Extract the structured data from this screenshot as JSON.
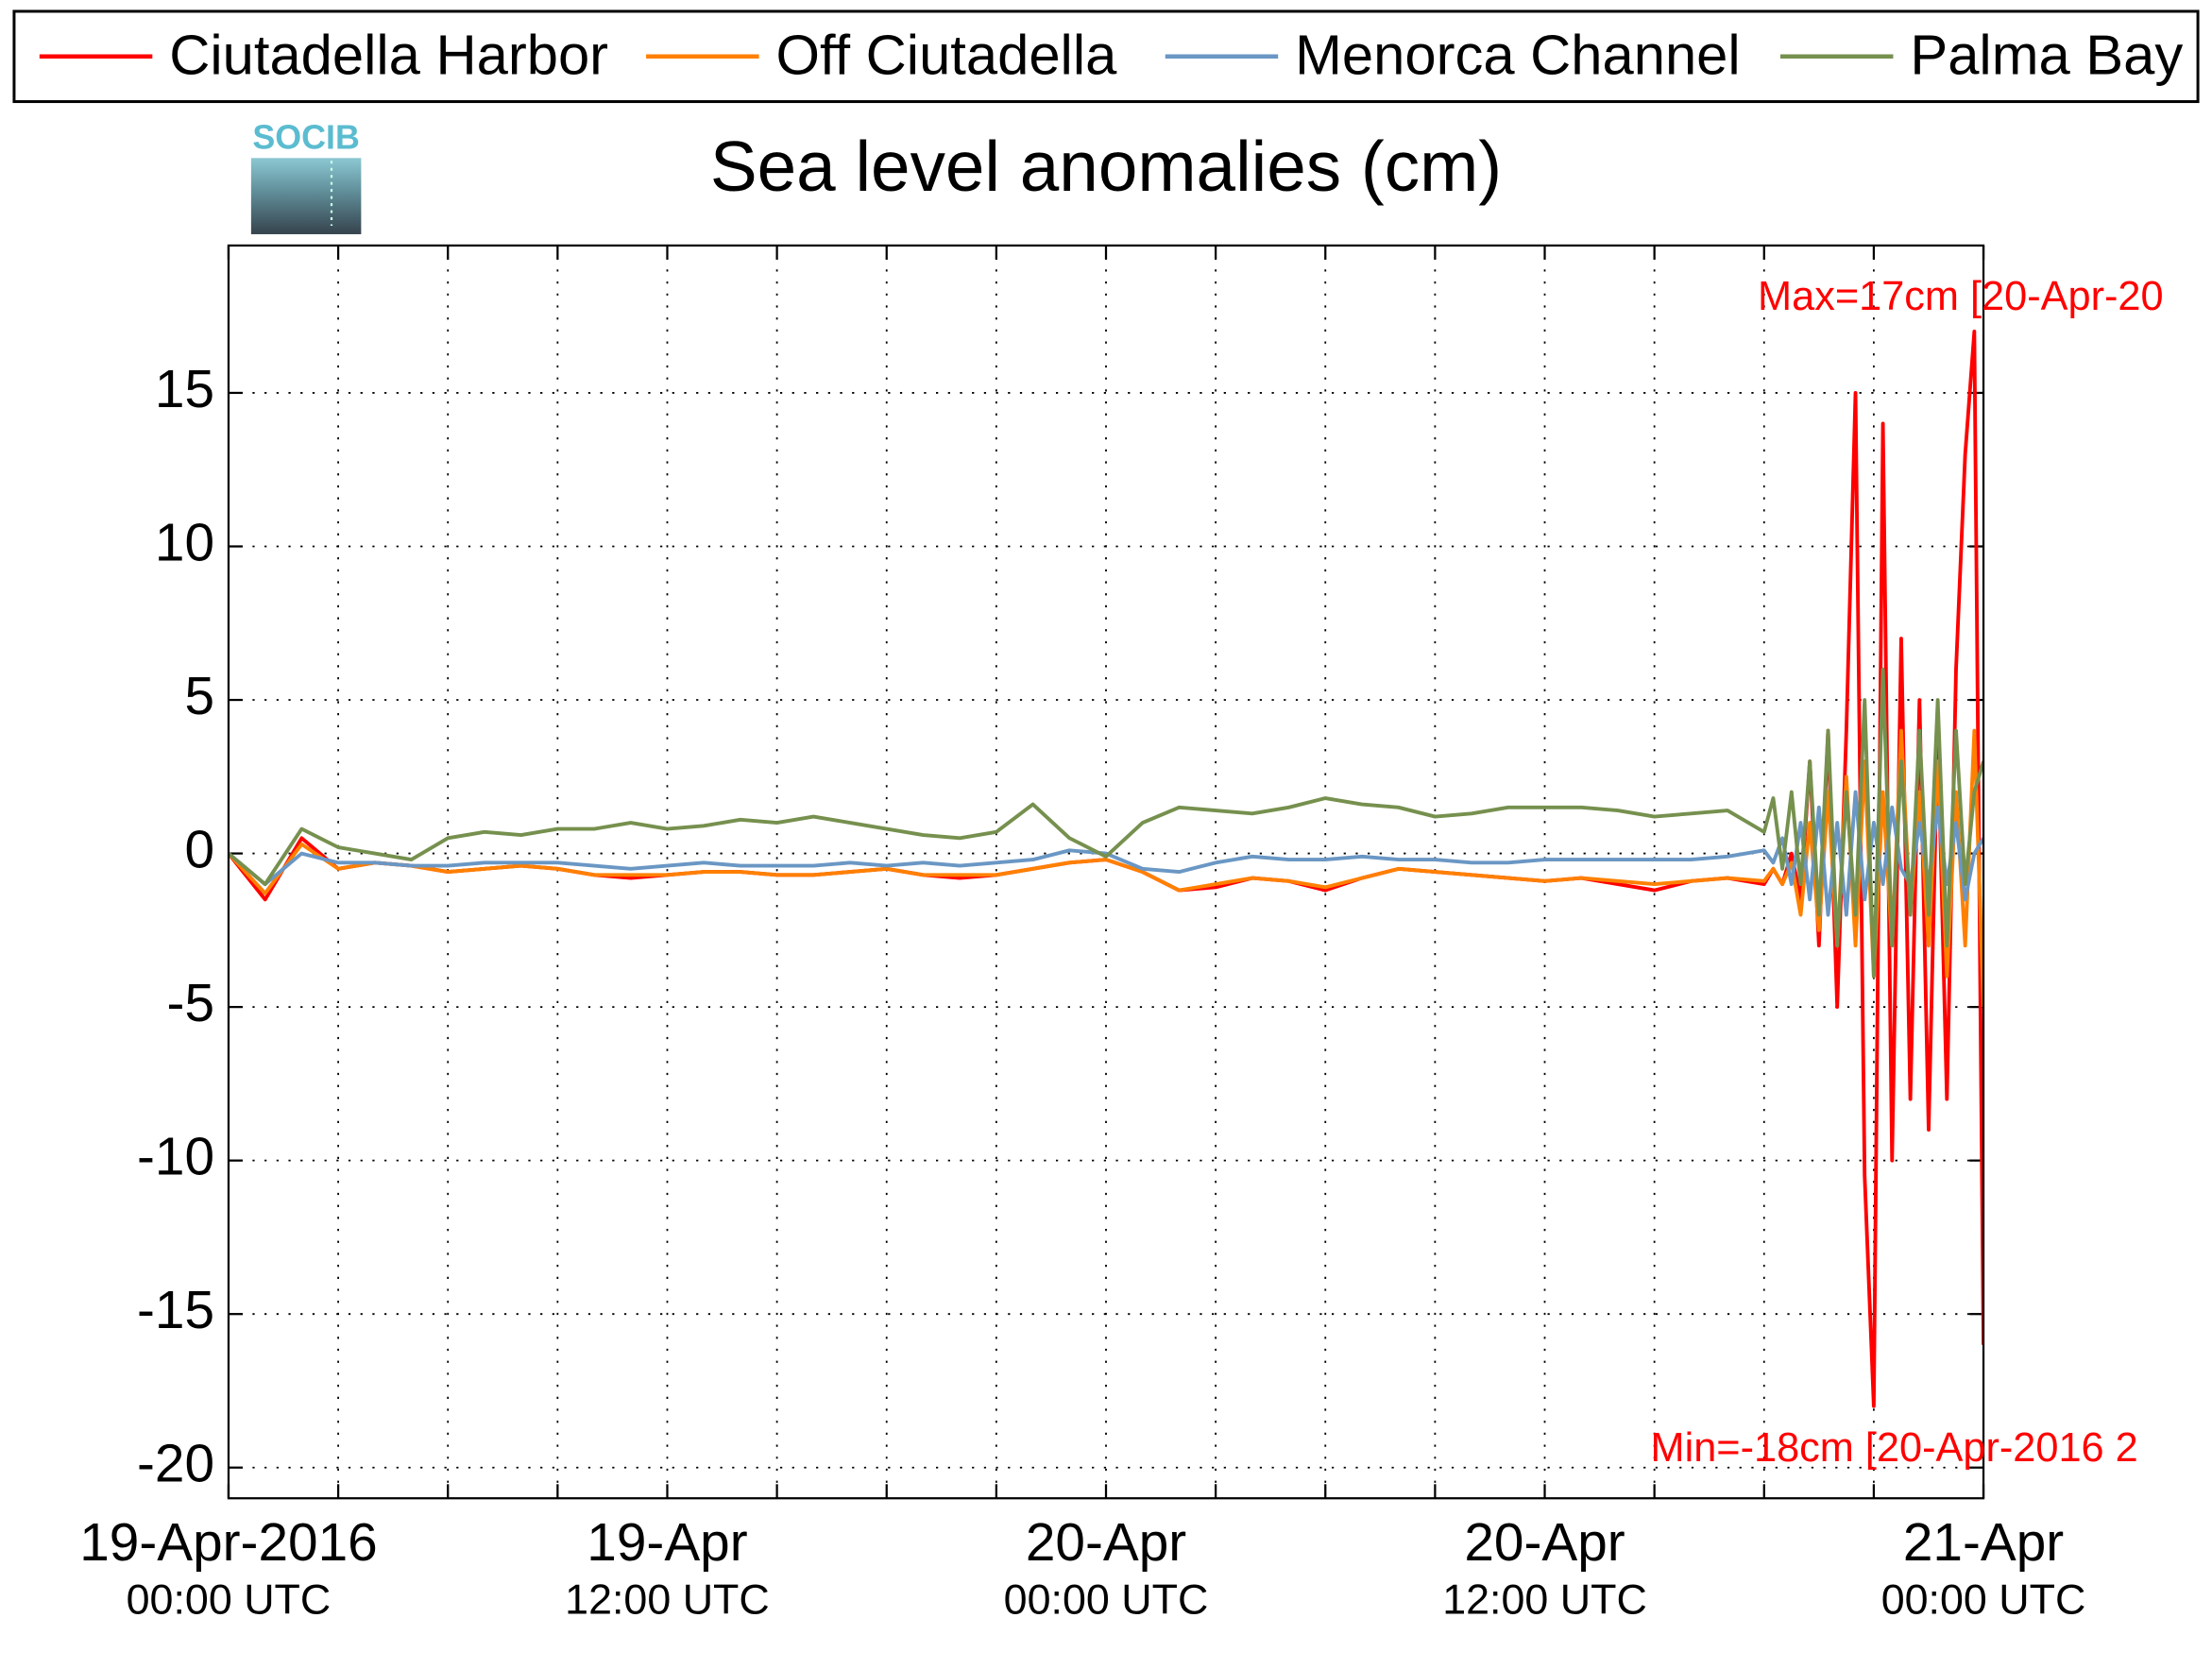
{
  "chart_data": {
    "type": "line",
    "title": "Sea level anomalies (cm)",
    "logo": "SOCIB",
    "legend": "top",
    "grid": true,
    "xlim": [
      0,
      48
    ],
    "xticks": [
      {
        "value": 0,
        "label": "19-Apr-2016",
        "sublabel": "00:00 UTC"
      },
      {
        "value": 12,
        "label": "19-Apr",
        "sublabel": "12:00 UTC"
      },
      {
        "value": 24,
        "label": "20-Apr",
        "sublabel": "00:00 UTC"
      },
      {
        "value": 36,
        "label": "20-Apr",
        "sublabel": "12:00 UTC"
      },
      {
        "value": 48,
        "label": "21-Apr",
        "sublabel": "00:00 UTC"
      }
    ],
    "xminor_ticks": [
      3,
      6,
      9,
      15,
      18,
      21,
      27,
      30,
      33,
      39,
      42,
      45
    ],
    "ylim": [
      -21,
      19.8
    ],
    "yticks": [
      -20,
      -15,
      -10,
      -5,
      0,
      5,
      10,
      15
    ],
    "annotations": [
      {
        "text": "Max=17cm [20-Apr-20",
        "color": "#ff0000"
      },
      {
        "text": "Min=-18cm [20-Apr-2016 2",
        "color": "#ff0000"
      }
    ],
    "x": [
      0,
      1,
      2,
      3,
      4,
      5,
      6,
      7,
      8,
      9,
      10,
      11,
      12,
      13,
      14,
      15,
      16,
      17,
      18,
      19,
      20,
      21,
      22,
      23,
      24,
      25,
      26,
      27,
      28,
      29,
      30,
      31,
      32,
      33,
      34,
      35,
      36,
      37,
      38,
      39,
      40,
      41,
      42,
      42.25,
      42.5,
      42.75,
      43,
      43.25,
      43.5,
      43.75,
      44,
      44.25,
      44.5,
      44.75,
      45,
      45.25,
      45.5,
      45.75,
      46,
      46.25,
      46.5,
      46.75,
      47,
      47.25,
      47.5,
      47.75,
      48
    ],
    "series": [
      {
        "name": "Ciutadella Harbor",
        "color": "#ff0000",
        "values": [
          0,
          -1.5,
          0.5,
          -0.5,
          -0.3,
          -0.4,
          -0.6,
          -0.5,
          -0.4,
          -0.5,
          -0.7,
          -0.8,
          -0.7,
          -0.6,
          -0.6,
          -0.7,
          -0.7,
          -0.6,
          -0.5,
          -0.7,
          -0.8,
          -0.7,
          -0.5,
          -0.3,
          -0.2,
          -0.6,
          -1.2,
          -1.1,
          -0.8,
          -0.9,
          -1.2,
          -0.8,
          -0.5,
          -0.6,
          -0.7,
          -0.8,
          -0.9,
          -0.8,
          -1.0,
          -1.2,
          -0.9,
          -0.8,
          -1.0,
          -0.5,
          -1,
          0,
          -1.5,
          3,
          -3,
          4,
          -5,
          4,
          15,
          -10.5,
          -18,
          14,
          -10,
          7,
          -8,
          5,
          -9,
          4,
          -8,
          6,
          13,
          17,
          -16
        ]
      },
      {
        "name": "Off Ciutadella",
        "color": "#ff8000",
        "values": [
          0,
          -1.3,
          0.3,
          -0.5,
          -0.3,
          -0.4,
          -0.6,
          -0.5,
          -0.4,
          -0.5,
          -0.7,
          -0.7,
          -0.7,
          -0.6,
          -0.6,
          -0.7,
          -0.7,
          -0.6,
          -0.5,
          -0.7,
          -0.7,
          -0.7,
          -0.5,
          -0.3,
          -0.2,
          -0.6,
          -1.2,
          -1.0,
          -0.8,
          -0.9,
          -1.1,
          -0.8,
          -0.5,
          -0.6,
          -0.7,
          -0.8,
          -0.9,
          -0.8,
          -0.9,
          -1.0,
          -0.9,
          -0.8,
          -0.9,
          -0.5,
          -1,
          -0.3,
          -2,
          1,
          -2.5,
          2,
          -3,
          2.5,
          -3,
          3,
          -4,
          2,
          -3,
          4,
          -2,
          2,
          -3,
          3,
          -4,
          2,
          -3,
          4,
          -5
        ]
      },
      {
        "name": "Menorca Channel",
        "color": "#6a97c4",
        "values": [
          0,
          -1,
          0,
          -0.3,
          -0.3,
          -0.4,
          -0.4,
          -0.3,
          -0.3,
          -0.3,
          -0.4,
          -0.5,
          -0.4,
          -0.3,
          -0.4,
          -0.4,
          -0.4,
          -0.3,
          -0.4,
          -0.3,
          -0.4,
          -0.3,
          -0.2,
          0.1,
          0,
          -0.5,
          -0.6,
          -0.3,
          -0.1,
          -0.2,
          -0.2,
          -0.1,
          -0.2,
          -0.2,
          -0.3,
          -0.3,
          -0.2,
          -0.2,
          -0.2,
          -0.2,
          -0.2,
          -0.1,
          0.1,
          -0.3,
          0.5,
          -1,
          1,
          -1.5,
          1.5,
          -2,
          1,
          -2,
          2,
          -1.5,
          1,
          -1,
          1.5,
          -0.5,
          -1,
          1,
          -1,
          1.5,
          -1,
          1,
          -1.5,
          0,
          0.5
        ]
      },
      {
        "name": "Palma Bay",
        "color": "#76904e",
        "values": [
          0,
          -1,
          0.8,
          0.2,
          0,
          -0.2,
          0.5,
          0.7,
          0.6,
          0.8,
          0.8,
          1.0,
          0.8,
          0.9,
          1.1,
          1.0,
          1.2,
          1.0,
          0.8,
          0.6,
          0.5,
          0.7,
          1.6,
          0.5,
          -0.1,
          1.0,
          1.5,
          1.4,
          1.3,
          1.5,
          1.8,
          1.6,
          1.5,
          1.2,
          1.3,
          1.5,
          1.5,
          1.5,
          1.4,
          1.2,
          1.3,
          1.4,
          0.7,
          1.8,
          -0.5,
          2,
          -1,
          3,
          -2,
          4,
          -3,
          2,
          -2,
          5,
          -4,
          6,
          -3,
          3,
          -2,
          4,
          -2,
          5,
          -3,
          4,
          -1,
          2,
          3
        ]
      }
    ]
  }
}
